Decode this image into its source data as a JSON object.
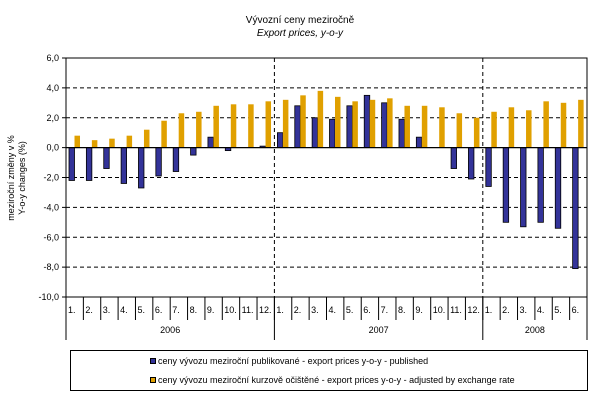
{
  "chart_data": {
    "type": "bar",
    "title": "Vývozní ceny meziročně",
    "subtitle": "Export prices, y-o-y",
    "xlabel": "",
    "ylabel": [
      "meziroční změny v %",
      "Y-o-y changes (%)"
    ],
    "ylim": [
      -10,
      6
    ],
    "yticks": [
      6,
      4,
      2,
      0,
      -2,
      -4,
      -6,
      -8,
      -10
    ],
    "ytick_labels": [
      "6,0",
      "4,0",
      "2,0",
      "0,0",
      "-2,0",
      "-4,0",
      "-6,0",
      "-8,0",
      "-10,0"
    ],
    "grid": "horizontal dashed",
    "categories": [
      "1.",
      "2.",
      "3.",
      "4.",
      "5.",
      "6.",
      "7.",
      "8.",
      "9.",
      "10.",
      "11.",
      "12.",
      "1.",
      "2.",
      "3.",
      "4.",
      "5.",
      "6.",
      "7.",
      "8.",
      "9.",
      "10.",
      "11.",
      "12.",
      "1.",
      "2.",
      "3.",
      "4.",
      "5.",
      "6."
    ],
    "groups": [
      {
        "label": "2006",
        "count": 12
      },
      {
        "label": "2007",
        "count": 12
      },
      {
        "label": "2008",
        "count": 6
      }
    ],
    "series": [
      {
        "name": "ceny vývozu meziroční publikované  - export prices y-o-y - published",
        "color": "#333399",
        "values": [
          -2.2,
          -2.2,
          -1.4,
          -2.4,
          -2.7,
          -1.9,
          -1.6,
          -0.5,
          0.7,
          -0.2,
          0.0,
          0.1,
          1.0,
          2.8,
          2.0,
          1.9,
          2.8,
          3.5,
          3.0,
          1.9,
          0.7,
          0.0,
          -1.4,
          -2.1,
          -2.6,
          -5.0,
          -5.3,
          -5.0,
          -5.4,
          -8.1
        ]
      },
      {
        "name": "ceny vývozu meziroční kurzově očištěné - export prices y-o-y - adjusted by exchange rate",
        "color": "#E0A000",
        "values": [
          0.8,
          0.5,
          0.6,
          0.8,
          1.2,
          1.8,
          2.3,
          2.4,
          2.8,
          2.9,
          2.9,
          3.1,
          3.2,
          3.5,
          3.8,
          3.4,
          3.1,
          3.2,
          3.3,
          2.8,
          2.8,
          2.7,
          2.3,
          2.0,
          2.4,
          2.7,
          2.5,
          3.1,
          3.0,
          3.2
        ]
      }
    ],
    "legend_position": "bottom"
  }
}
